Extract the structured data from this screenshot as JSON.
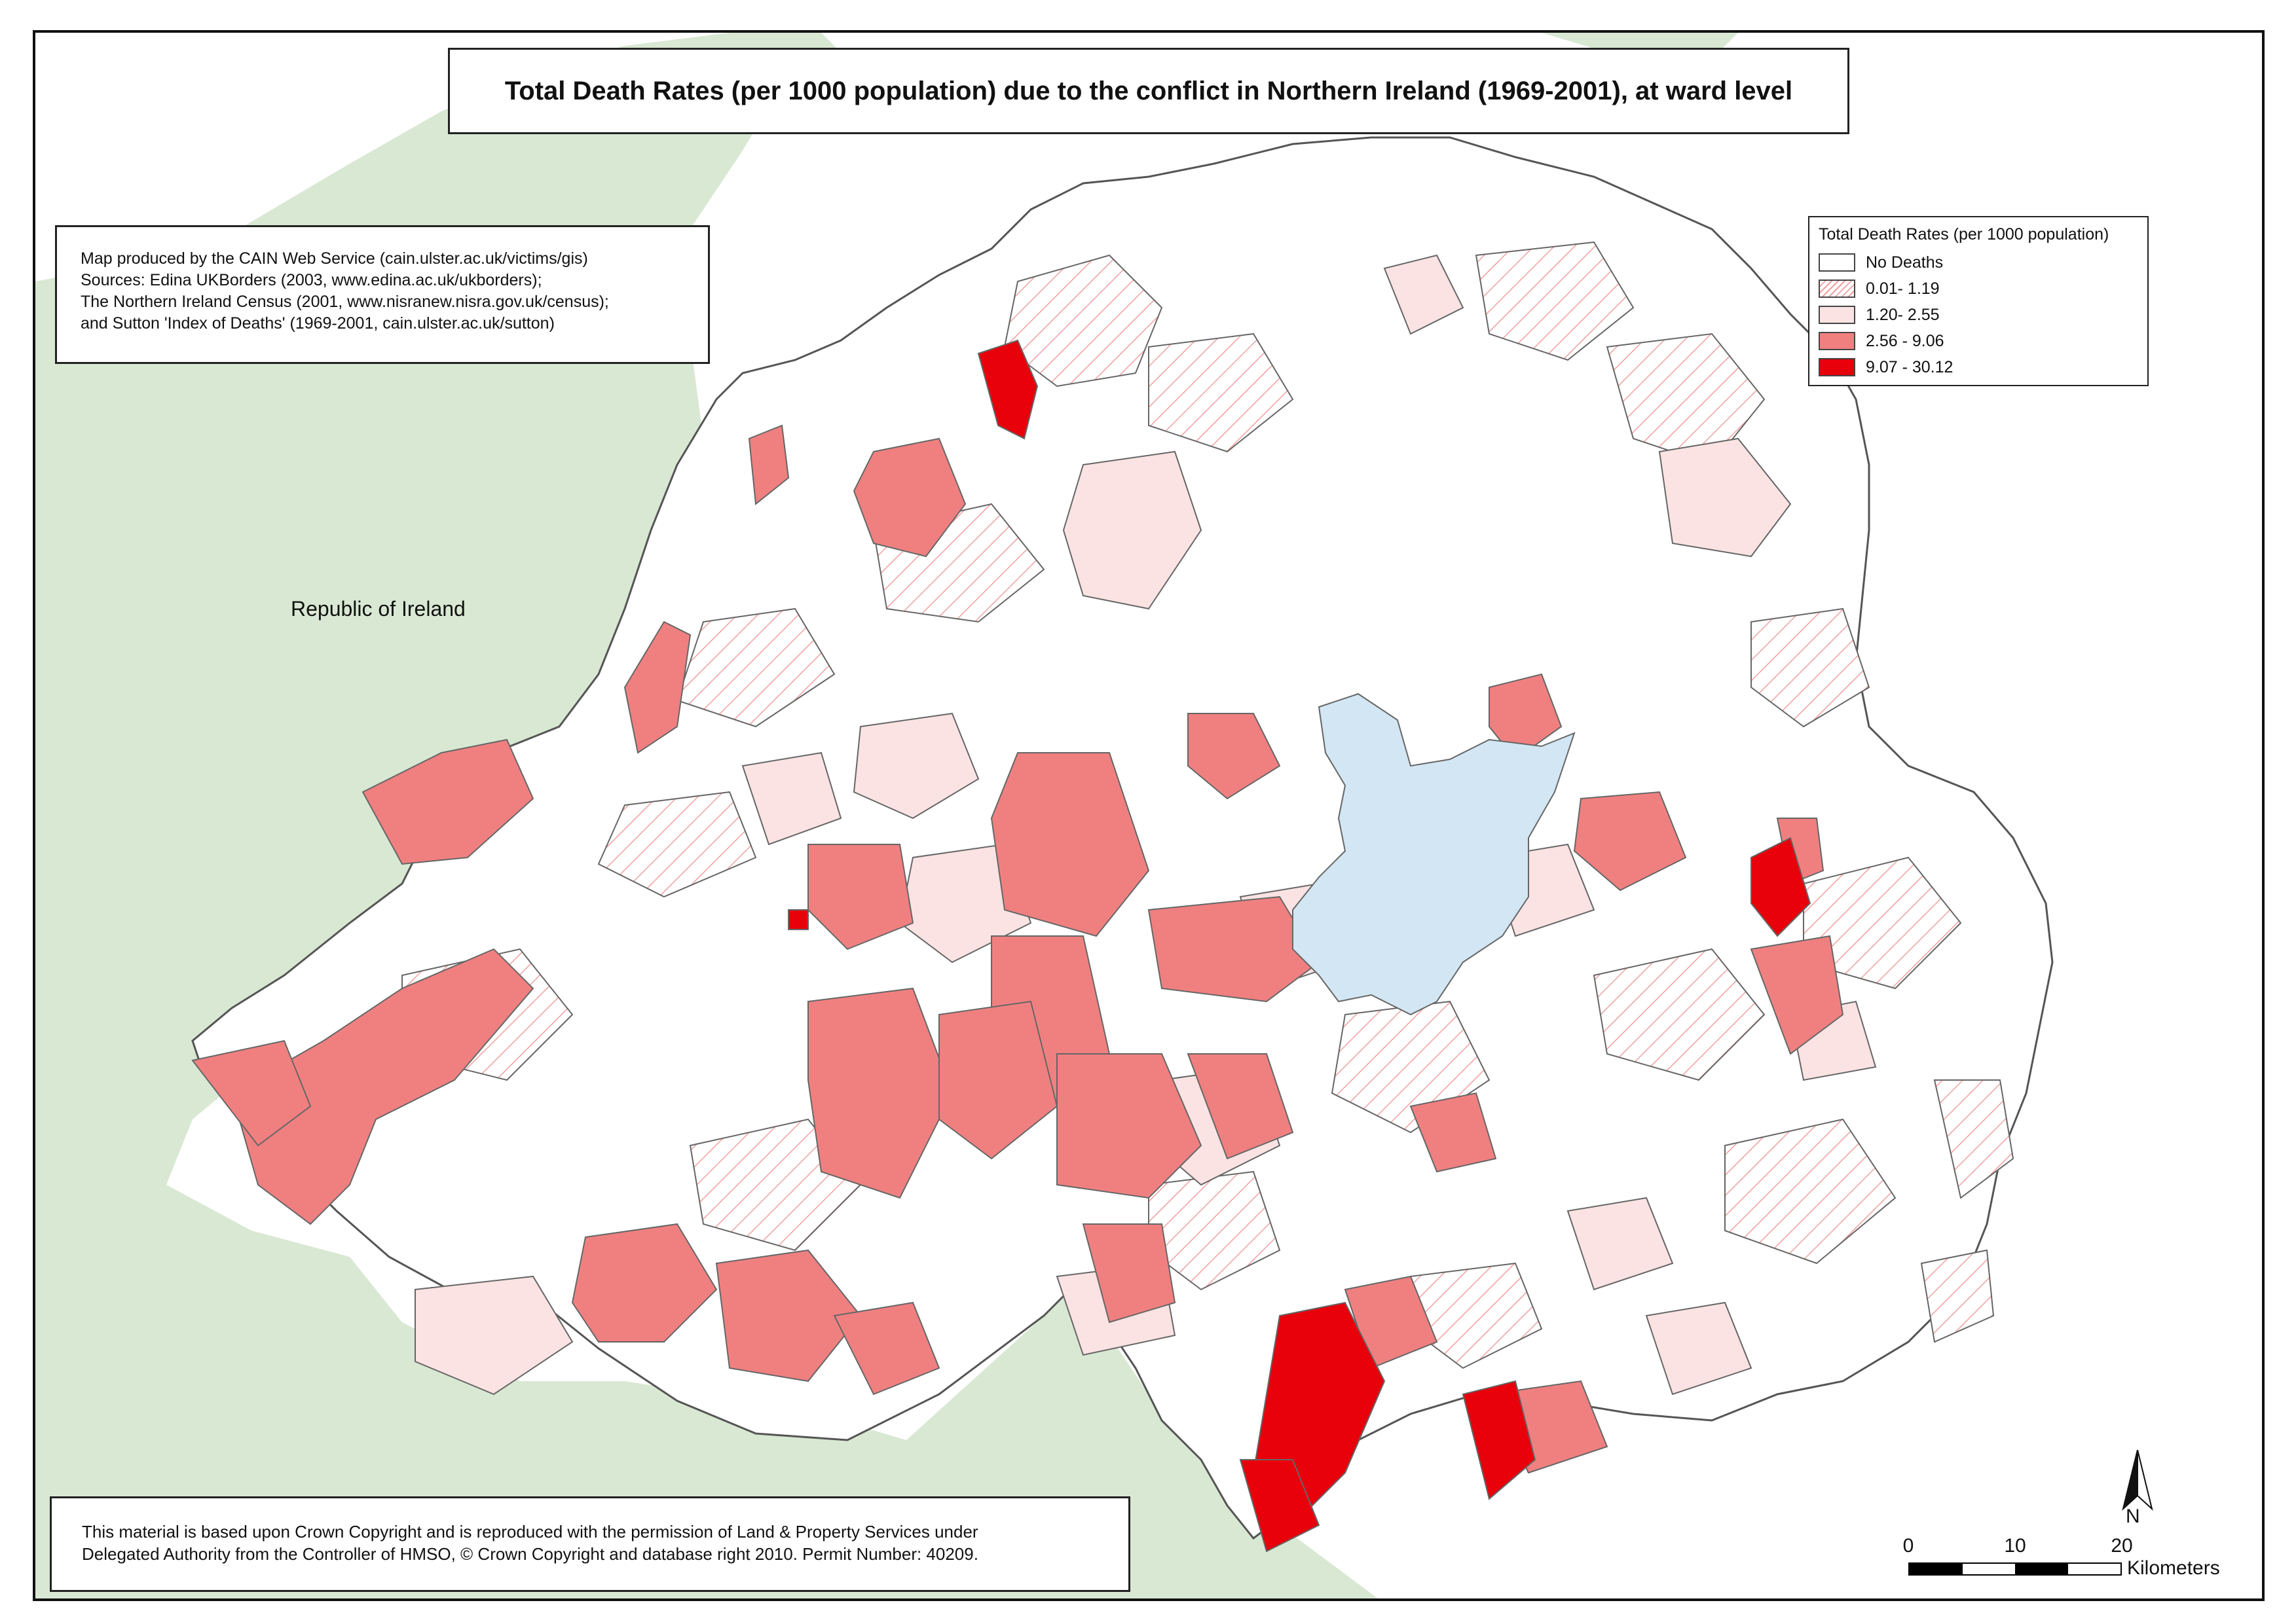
{
  "title": "Total Death Rates (per 1000 population) due to the conflict in Northern Ireland (1969-2001), at ward level",
  "credits": [
    "Map produced by the CAIN Web Service (cain.ulster.ac.uk/victims/gis)",
    "Sources: Edina UKBorders (2003, www.edina.ac.uk/ukborders);",
    "The Northern Ireland Census (2001, www.nisranew.nisra.gov.uk/census);",
    "and Sutton 'Index of Deaths' (1969-2001, cain.ulster.ac.uk/sutton)"
  ],
  "copyright": [
    "This material is based upon Crown Copyright and is reproduced with the permission of Land & Property Services under",
    "Delegated Authority from the Controller of HMSO, © Crown Copyright and database right 2010. Permit Number: 40209."
  ],
  "legend": {
    "title": "Total Death Rates (per 1000 population)",
    "classes": [
      {
        "label": "No Deaths",
        "fill": "#ffffff",
        "hatch": false
      },
      {
        "label": "0.01- 1.19",
        "fill": "#ffffff",
        "hatch": true
      },
      {
        "label": "1.20- 2.55",
        "fill": "#fbe3e3",
        "hatch": false
      },
      {
        "label": "2.56 - 9.06",
        "fill": "#f08080",
        "hatch": false
      },
      {
        "label": "9.07 - 30.12",
        "fill": "#e8000b",
        "hatch": false
      }
    ]
  },
  "place_labels": {
    "republic": "Republic of Ireland"
  },
  "north_label": "N",
  "scale": {
    "ticks": [
      "0",
      "10",
      "20"
    ],
    "units": "Kilometers"
  },
  "colors": {
    "land_roi": "#d9e8d3",
    "lough": "#d2e6f3",
    "border": "#666666",
    "hatch": "#f0a0a0"
  }
}
